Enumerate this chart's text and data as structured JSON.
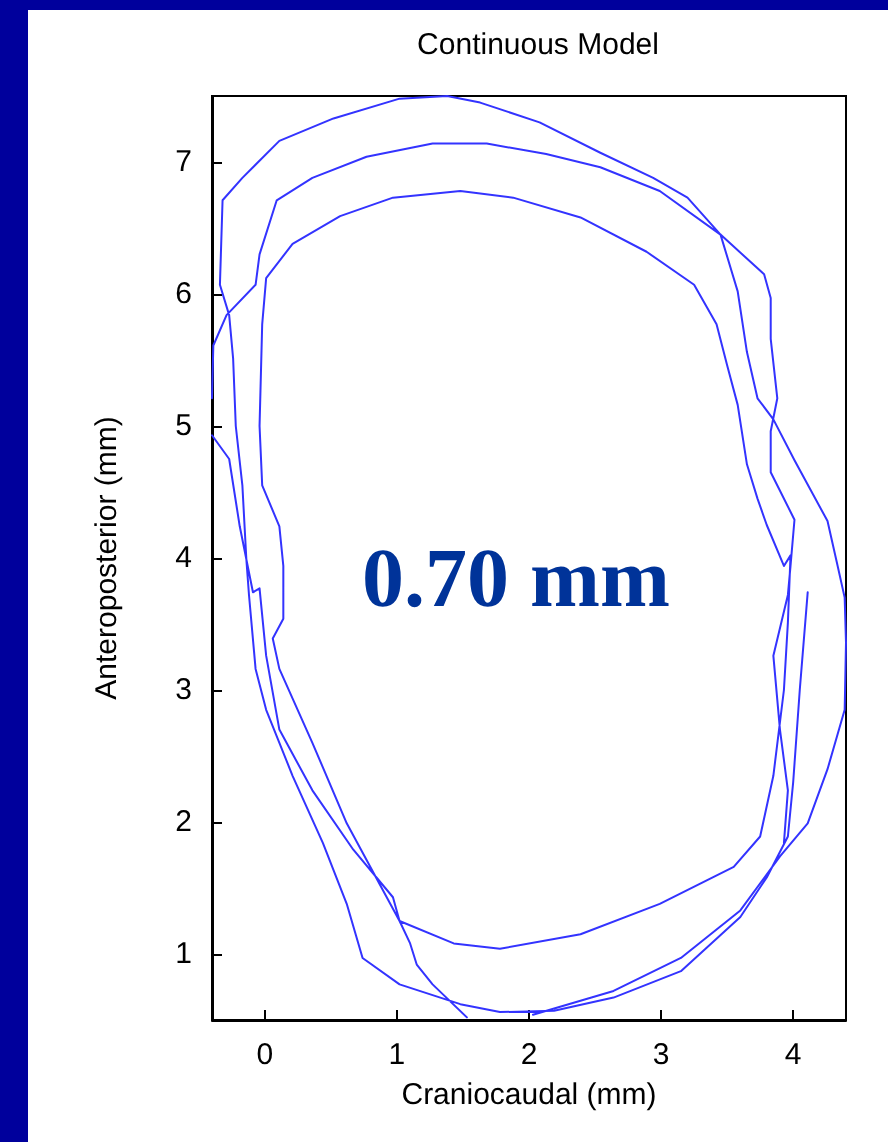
{
  "chart_data": {
    "type": "line",
    "title": "Continuous Model",
    "xlabel": "Craniocaudal (mm)",
    "ylabel": "Anteroposterior (mm)",
    "annotations": [
      "0.70 mm"
    ],
    "xlim": [
      -0.4,
      4.4
    ],
    "xticks": [
      0,
      1,
      2,
      3,
      4
    ],
    "ylim": [
      0.5,
      7.5
    ],
    "yticks": [
      1,
      2,
      3,
      4,
      5,
      6,
      7
    ],
    "grid": false,
    "marker": "none",
    "line_style": "solid",
    "series": [
      {
        "color": "#3333ff",
        "x": [
          -0.4,
          -0.27,
          -0.19,
          -0.09,
          -0.04,
          0.01,
          0.11,
          0.36,
          0.67,
          0.97,
          1.02,
          1.43,
          1.78,
          2.39,
          2.99,
          3.55,
          3.75,
          3.85,
          3.93,
          3.96,
          3.98,
          3.93,
          3.8,
          3.73,
          3.65,
          3.58,
          3.5,
          3.42,
          3.25,
          2.89,
          2.39,
          1.88,
          1.48,
          0.97,
          0.57,
          0.21,
          0.01,
          -0.02,
          -0.04,
          -0.02,
          0.11,
          0.14,
          0.14,
          0.06,
          0.11,
          0.36,
          0.62,
          1.02,
          1.1,
          1.15,
          1.27,
          1.53,
          null,
          -0.4,
          -0.39,
          -0.29,
          -0.07,
          -0.04,
          0.09,
          0.36,
          0.77,
          1.27,
          1.68,
          2.13,
          2.54,
          2.99,
          3.45,
          3.58,
          3.65,
          3.73,
          3.85,
          4.01,
          4.26,
          4.33,
          4.39,
          4.4,
          4.39,
          4.26,
          4.11,
          3.9,
          3.6,
          3.15,
          2.64,
          2.03,
          null,
          3.93,
          3.96,
          3.9,
          3.85,
          3.96,
          3.98,
          4.01,
          3.83,
          3.83,
          3.88,
          3.83,
          3.83,
          3.78,
          3.45,
          3.2,
          2.94,
          2.54,
          2.08,
          1.63,
          1.38,
          1.02,
          0.52,
          0.11,
          -0.17,
          -0.32,
          -0.34,
          -0.27,
          -0.24,
          -0.22,
          -0.17,
          -0.14,
          -0.12,
          -0.07,
          0.01,
          0.21,
          0.44,
          0.62,
          0.74,
          1.02,
          1.48,
          1.78,
          2.19,
          2.64,
          3.15,
          3.6,
          3.8,
          3.96,
          4.0,
          4.05,
          4.11
        ],
        "values": [
          4.93,
          4.75,
          4.24,
          3.74,
          3.77,
          3.26,
          2.7,
          2.24,
          1.79,
          1.43,
          1.25,
          1.08,
          1.04,
          1.15,
          1.38,
          1.66,
          1.89,
          2.35,
          3.0,
          3.51,
          4.02,
          3.94,
          4.25,
          4.45,
          4.71,
          5.16,
          5.46,
          5.77,
          6.07,
          6.32,
          6.58,
          6.73,
          6.78,
          6.73,
          6.59,
          6.38,
          6.12,
          5.77,
          5.0,
          4.55,
          4.24,
          3.94,
          3.54,
          3.39,
          3.16,
          2.6,
          1.99,
          1.25,
          1.08,
          0.92,
          0.77,
          0.52,
          null,
          5.21,
          5.61,
          5.84,
          6.07,
          6.3,
          6.71,
          6.88,
          7.04,
          7.14,
          7.14,
          7.06,
          6.96,
          6.78,
          6.45,
          6.02,
          5.56,
          5.21,
          5.05,
          4.74,
          4.28,
          3.97,
          3.7,
          3.36,
          2.85,
          2.4,
          1.99,
          1.74,
          1.33,
          0.97,
          0.72,
          0.54,
          null,
          1.84,
          2.24,
          2.7,
          3.26,
          3.72,
          3.94,
          4.29,
          4.65,
          4.96,
          5.21,
          5.66,
          5.97,
          6.15,
          6.45,
          6.73,
          6.88,
          7.07,
          7.3,
          7.45,
          7.5,
          7.48,
          7.33,
          7.16,
          6.88,
          6.71,
          6.07,
          5.84,
          5.51,
          5.0,
          4.55,
          3.99,
          3.72,
          3.16,
          2.85,
          2.35,
          1.84,
          1.38,
          0.97,
          0.77,
          0.62,
          0.56,
          0.57,
          0.67,
          0.87,
          1.28,
          1.58,
          1.89,
          2.3,
          3.0,
          3.74
        ]
      }
    ]
  }
}
